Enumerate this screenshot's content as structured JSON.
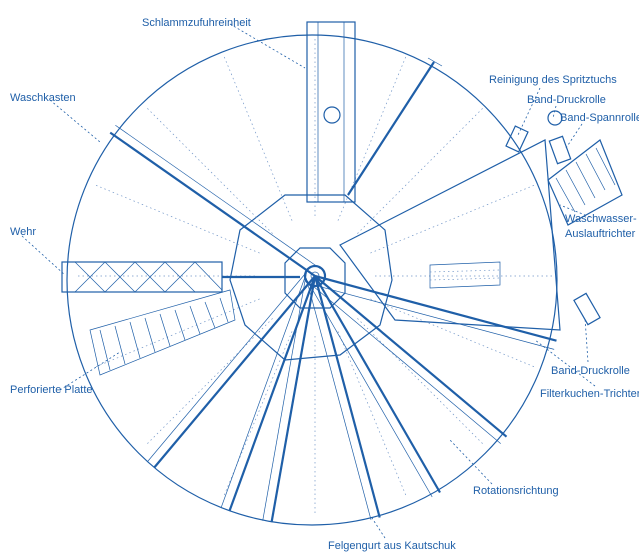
{
  "colors": {
    "line": "#1f5fa8",
    "faint": "#6f94c7",
    "background": "#ffffff"
  },
  "labels": {
    "schlammzufuhreinheit": "Schlammzufuhreinheit",
    "waschkasten": "Waschkasten",
    "reinigung": "Reinigung des Spritztuchs",
    "band_druckrolle_top": "Band-Druckrolle",
    "band_spannrolle": "Band-Spannrolle",
    "waschwasser_1": "Waschwasser-",
    "waschwasser_2": "Auslauftrichter",
    "wehr": "Wehr",
    "band_druckrolle_bottom": "Band-Druckrolle",
    "filterkuchen": "Filterkuchen-Trichter",
    "perforierte_platte": "Perforierte Platte",
    "rotationsrichtung": "Rotationsrichtung",
    "felgengurt": "Felgengurt aus Kautschuk"
  }
}
